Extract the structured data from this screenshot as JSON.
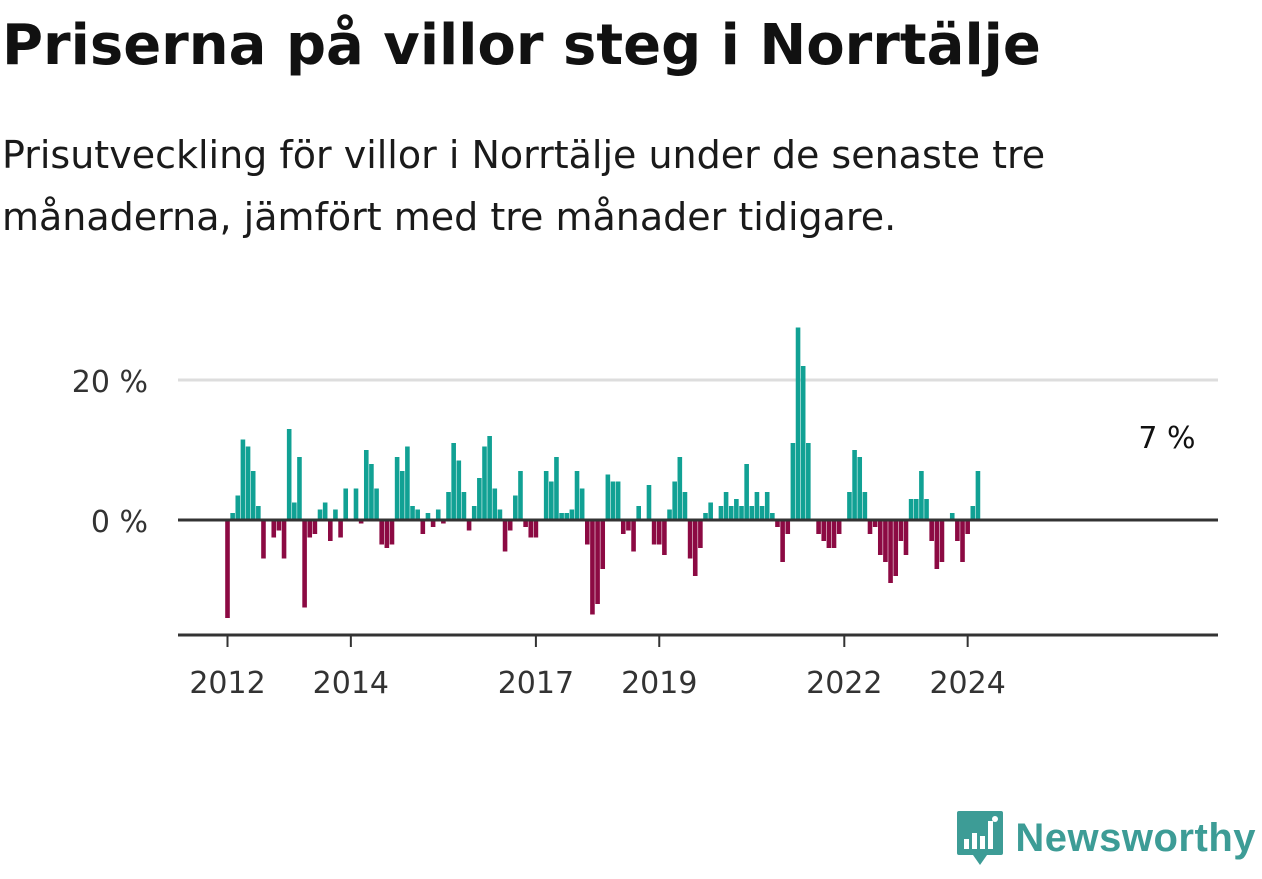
{
  "title": "Priserna på villor steg i Norrtälje",
  "subtitle": "Prisutveckling för villor i Norrtälje under de senaste tre månaderna, jämfört med tre månader tidigare.",
  "logo_text": "Newsworthy",
  "colors": {
    "positive": "#11a194",
    "negative": "#8c0a43",
    "grid": "#dddddd",
    "axis": "#333333"
  },
  "chart_data": {
    "type": "bar",
    "title": "Priserna på villor steg i Norrtälje",
    "subtitle": "Prisutveckling för villor i Norrtälje under de senaste tre månaderna, jämfört med tre månader tidigare.",
    "xlabel": "",
    "ylabel": "",
    "x_start": "2012-01",
    "x_end": "2024-04",
    "x_ticks": [
      "2012",
      "2014",
      "2017",
      "2019",
      "2022",
      "2024"
    ],
    "y_ticks": [
      0,
      20
    ],
    "y_tick_labels": [
      "0 %",
      "20 %"
    ],
    "ylim": [
      -16,
      28
    ],
    "grid": true,
    "annotation": "7 %",
    "values": [
      -14,
      1,
      3.5,
      11.5,
      10.5,
      7,
      2,
      -5.5,
      0,
      -2.5,
      -1.5,
      -5.5,
      13,
      2.5,
      9,
      -12.5,
      -2.5,
      -2,
      1.5,
      2.5,
      -3,
      1.5,
      -2.5,
      4.5,
      0,
      4.5,
      -0.5,
      10,
      8,
      4.5,
      -3.5,
      -4,
      -3.5,
      9,
      7,
      10.5,
      2,
      1.5,
      -2,
      1,
      -1,
      1.5,
      -0.5,
      4,
      11,
      8.5,
      4,
      -1.5,
      2,
      6,
      10.5,
      12,
      4.5,
      1.5,
      -4.5,
      -1.5,
      3.5,
      7,
      -1,
      -2.5,
      -2.5,
      0,
      7,
      5.5,
      9,
      1,
      1,
      1.5,
      7,
      4.5,
      -3.5,
      -13.5,
      -12,
      -7,
      6.5,
      5.5,
      5.5,
      -2,
      -1.5,
      -4.5,
      2,
      0,
      5,
      -3.5,
      -3.5,
      -5,
      1.5,
      5.5,
      9,
      4,
      -5.5,
      -8,
      -4,
      1,
      2.5,
      0,
      2,
      4,
      2,
      3,
      2,
      8,
      2,
      4,
      2,
      4,
      1,
      -1,
      -6,
      -2,
      11,
      27.5,
      22,
      11,
      0,
      -2,
      -3,
      -4,
      -4,
      -2,
      0,
      4,
      10,
      9,
      4,
      -2,
      -1,
      -5,
      -6,
      -9,
      -8,
      -3,
      -5,
      3,
      3,
      7,
      3,
      -3,
      -7,
      -6,
      0,
      1,
      -3,
      -6,
      -2,
      2,
      7
    ]
  }
}
